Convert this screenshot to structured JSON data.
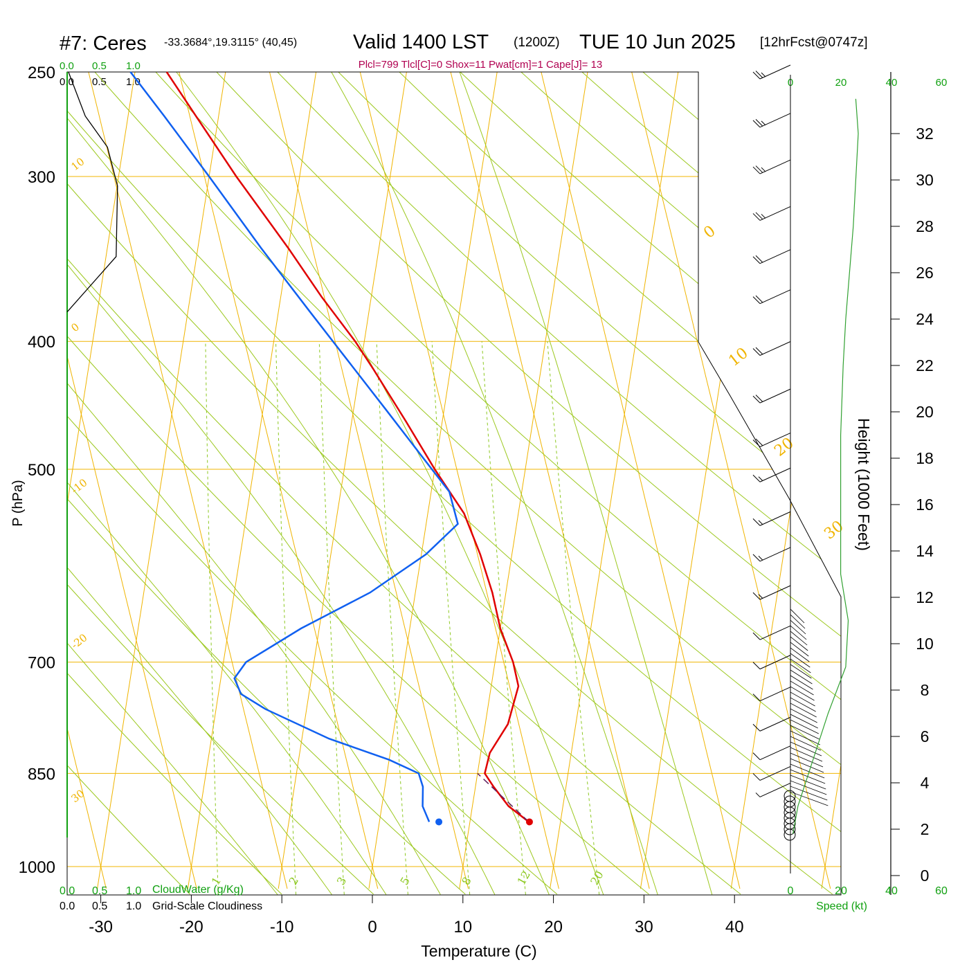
{
  "header": {
    "station": "#7: Ceres",
    "coords": "-33.3684°,19.3115° (40,45)",
    "valid": "Valid 1400 LST",
    "zulu": "(1200Z)",
    "date": "TUE 10 Jun 2025",
    "forecast": "[12hrFcst@0747z]",
    "indices": "Plcl=799 Tlcl[C]=0 Shox=11 Pwat[cm]=1 Cape[J]= 13"
  },
  "colors": {
    "isotherm": "#f0b400",
    "dry_adiabat": "#9cc81e",
    "moist_adiabat": "#9cc81e",
    "mixing_ratio": "#8cc820",
    "temperature": "#e00000",
    "dewpoint": "#1060f0",
    "cloudwater": "#10a010",
    "indices": "#b00050",
    "wind_speed_curve": "#30a030"
  },
  "chart_data": {
    "type": "skew-t",
    "xlabel": "Temperature (C)",
    "ylabel": "P (hPa)",
    "right_ylabel": "Height (1000 Feet)",
    "x_ticks": [
      -30,
      -20,
      -10,
      0,
      10,
      20,
      30,
      40
    ],
    "p_ticks": [
      250,
      300,
      400,
      500,
      700,
      850,
      1000
    ],
    "height_ticks": [
      0,
      2,
      4,
      6,
      8,
      10,
      12,
      14,
      16,
      18,
      20,
      22,
      24,
      26,
      28,
      30,
      32
    ],
    "xlim": [
      -34,
      36
    ],
    "plim": [
      250,
      1000
    ],
    "isotherm_labels": [
      30,
      20,
      10,
      0,
      -10,
      -20,
      -30
    ],
    "isotherm_label_text": [
      "30",
      "20",
      "10",
      "0",
      "-10",
      "-20",
      "30",
      "0",
      "10",
      "20",
      "30"
    ],
    "mixing_ratio_labels": [
      "1",
      "2",
      "3",
      "5",
      "8",
      "12",
      "20"
    ],
    "temperature": [
      {
        "p": 925,
        "t": 16.5
      },
      {
        "p": 900,
        "t": 14.0
      },
      {
        "p": 870,
        "t": 12.0
      },
      {
        "p": 850,
        "t": 10.8
      },
      {
        "p": 820,
        "t": 11.0
      },
      {
        "p": 780,
        "t": 12.5
      },
      {
        "p": 730,
        "t": 13.0
      },
      {
        "p": 700,
        "t": 12.0
      },
      {
        "p": 660,
        "t": 10.0
      },
      {
        "p": 620,
        "t": 8.5
      },
      {
        "p": 580,
        "t": 6.5
      },
      {
        "p": 540,
        "t": 4.0
      },
      {
        "p": 500,
        "t": 0.0
      },
      {
        "p": 460,
        "t": -4.0
      },
      {
        "p": 420,
        "t": -8.5
      },
      {
        "p": 400,
        "t": -11.0
      },
      {
        "p": 370,
        "t": -15.5
      },
      {
        "p": 340,
        "t": -20.0
      },
      {
        "p": 300,
        "t": -27.0
      },
      {
        "p": 270,
        "t": -32.5
      },
      {
        "p": 250,
        "t": -36.5
      }
    ],
    "dewpoint": [
      {
        "p": 925,
        "t": 5.5
      },
      {
        "p": 900,
        "t": 4.5
      },
      {
        "p": 870,
        "t": 4.2
      },
      {
        "p": 850,
        "t": 3.5
      },
      {
        "p": 830,
        "t": 0.0
      },
      {
        "p": 800,
        "t": -7.0
      },
      {
        "p": 760,
        "t": -14.5
      },
      {
        "p": 740,
        "t": -17.5
      },
      {
        "p": 720,
        "t": -18.5
      },
      {
        "p": 700,
        "t": -17.5
      },
      {
        "p": 660,
        "t": -12.0
      },
      {
        "p": 620,
        "t": -5.0
      },
      {
        "p": 580,
        "t": 0.5
      },
      {
        "p": 550,
        "t": 3.5
      },
      {
        "p": 520,
        "t": 2.0
      },
      {
        "p": 490,
        "t": -1.5
      },
      {
        "p": 450,
        "t": -6.5
      },
      {
        "p": 410,
        "t": -12.0
      },
      {
        "p": 380,
        "t": -16.5
      },
      {
        "p": 340,
        "t": -23.0
      },
      {
        "p": 300,
        "t": -30.0
      },
      {
        "p": 270,
        "t": -36.0
      },
      {
        "p": 250,
        "t": -40.5
      }
    ],
    "parcel": [
      {
        "p": 925,
        "t": 16.5
      },
      {
        "p": 850,
        "t": 10.0
      }
    ],
    "cloudiness": [
      {
        "p": 250,
        "v": 0.02
      },
      {
        "p": 270,
        "v": 0.27
      },
      {
        "p": 285,
        "v": 0.6
      },
      {
        "p": 305,
        "v": 0.75
      },
      {
        "p": 345,
        "v": 0.73
      },
      {
        "p": 380,
        "v": 0.0
      }
    ],
    "wind_speed_profile": [
      {
        "h": 33.5,
        "kt": 26
      },
      {
        "h": 32,
        "kt": 27
      },
      {
        "h": 28,
        "kt": 25
      },
      {
        "h": 24,
        "kt": 22
      },
      {
        "h": 22,
        "kt": 21
      },
      {
        "h": 19,
        "kt": 20
      },
      {
        "h": 16,
        "kt": 20
      },
      {
        "h": 13,
        "kt": 20
      },
      {
        "h": 11,
        "kt": 23
      },
      {
        "h": 9,
        "kt": 22
      },
      {
        "h": 7,
        "kt": 15
      },
      {
        "h": 5,
        "kt": 9
      },
      {
        "h": 3,
        "kt": 3
      },
      {
        "h": 1.8,
        "kt": 1
      }
    ],
    "wind_barbs": [
      {
        "p": 250,
        "kt": 25
      },
      {
        "p": 272,
        "kt": 25
      },
      {
        "p": 295,
        "kt": 25
      },
      {
        "p": 320,
        "kt": 25
      },
      {
        "p": 345,
        "kt": 20
      },
      {
        "p": 370,
        "kt": 20
      },
      {
        "p": 405,
        "kt": 20
      },
      {
        "p": 440,
        "kt": 20
      },
      {
        "p": 475,
        "kt": 20
      },
      {
        "p": 505,
        "kt": 15
      },
      {
        "p": 545,
        "kt": 15
      },
      {
        "p": 580,
        "kt": 15
      },
      {
        "p": 620,
        "kt": 15
      },
      {
        "p": 665,
        "kt": 10
      },
      {
        "p": 700,
        "kt": 10
      },
      {
        "p": 740,
        "kt": 10
      },
      {
        "p": 780,
        "kt": 10
      },
      {
        "p": 820,
        "kt": 10
      },
      {
        "p": 850,
        "kt": 10
      },
      {
        "p": 875,
        "kt": 5
      }
    ],
    "calm_circles": 8,
    "legend_bottom": {
      "scale_green": [
        "0.0",
        "0.5",
        "1.0"
      ],
      "scale_black": [
        "0.0",
        "0.5",
        "1.0"
      ],
      "cloudwater_label": "CloudWater (g/Kg)",
      "cloudiness_label": "Grid-Scale Cloudiness",
      "speed_ticks": [
        "0",
        "20",
        "40",
        "60"
      ],
      "speed_label": "Speed (kt)"
    },
    "legend_top": {
      "scale_green": [
        "0.0",
        "0.5",
        "1.0"
      ],
      "scale_black": [
        "0.0",
        "0.5",
        "1.0"
      ],
      "speed_ticks": [
        "0",
        "20",
        "40",
        "60"
      ]
    }
  }
}
